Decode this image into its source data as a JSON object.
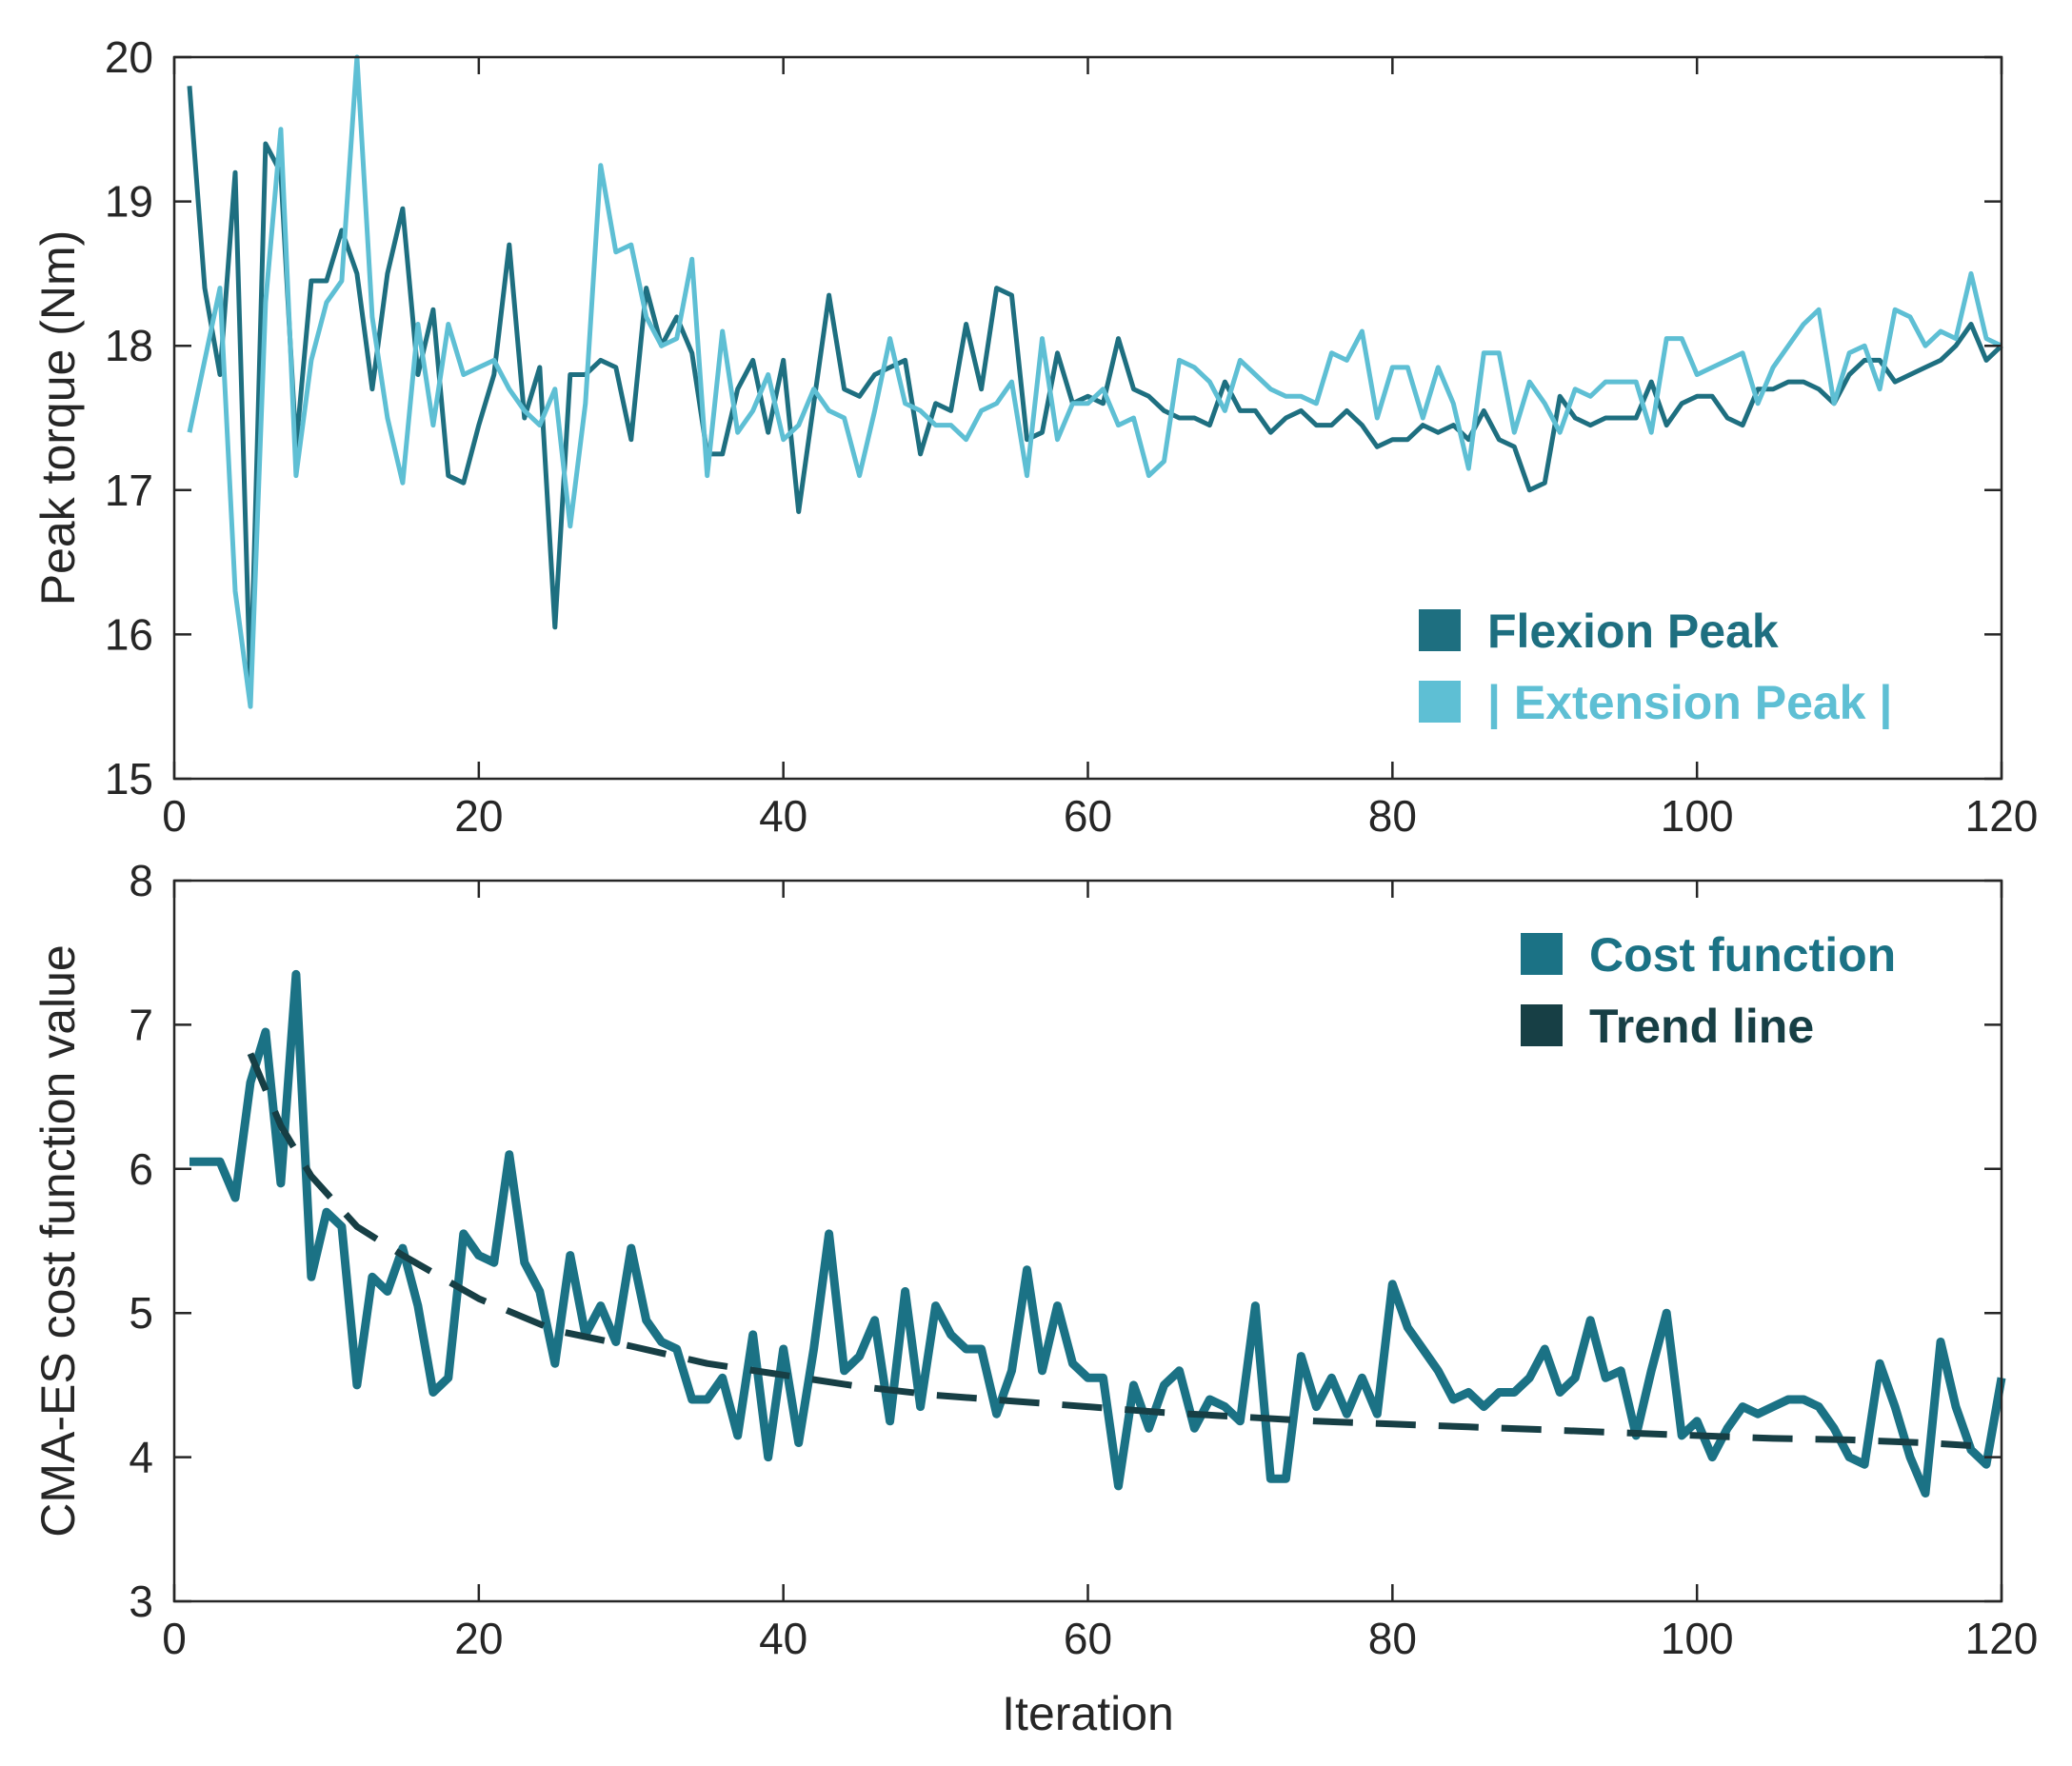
{
  "chart_data": [
    {
      "type": "line",
      "xlabel": "",
      "ylabel": "Peak torque (Nm)",
      "xlim": [
        0,
        120
      ],
      "ylim": [
        15,
        20
      ],
      "xticks": [
        0,
        20,
        40,
        60,
        80,
        100,
        120
      ],
      "yticks": [
        15,
        16,
        17,
        18,
        19,
        20
      ],
      "grid": false,
      "legend_position": "bottom-right",
      "series": [
        {
          "name": "Flexion Peak",
          "color": "#1e6f80",
          "line_style": "solid",
          "x": [
            1,
            2,
            3,
            4,
            5,
            6,
            7,
            8,
            9,
            10,
            11,
            12,
            13,
            14,
            15,
            16,
            17,
            18,
            19,
            20,
            21,
            22,
            23,
            24,
            25,
            26,
            27,
            28,
            29,
            30,
            31,
            32,
            33,
            34,
            35,
            36,
            37,
            38,
            39,
            40,
            41,
            42,
            43,
            44,
            45,
            46,
            47,
            48,
            49,
            50,
            51,
            52,
            53,
            54,
            55,
            56,
            57,
            58,
            59,
            60,
            61,
            62,
            63,
            64,
            65,
            66,
            67,
            68,
            69,
            70,
            71,
            72,
            73,
            74,
            75,
            76,
            77,
            78,
            79,
            80,
            81,
            82,
            83,
            84,
            85,
            86,
            87,
            88,
            89,
            90,
            91,
            92,
            93,
            94,
            95,
            96,
            97,
            98,
            99,
            100,
            101,
            102,
            103,
            104,
            105,
            106,
            107,
            108,
            109,
            110,
            111,
            112,
            113,
            114,
            115,
            116,
            117,
            118,
            119,
            120
          ],
          "y": [
            19.8,
            18.4,
            17.8,
            19.2,
            15.6,
            19.4,
            19.2,
            17.3,
            18.45,
            18.45,
            18.8,
            18.5,
            17.7,
            18.5,
            18.95,
            17.8,
            18.25,
            17.1,
            17.05,
            17.45,
            17.8,
            18.7,
            17.5,
            17.85,
            16.05,
            17.8,
            17.8,
            17.9,
            17.85,
            17.35,
            18.4,
            18.0,
            18.2,
            17.95,
            17.25,
            17.25,
            17.7,
            17.9,
            17.4,
            17.9,
            16.85,
            17.6,
            18.35,
            17.7,
            17.65,
            17.8,
            17.85,
            17.9,
            17.25,
            17.6,
            17.55,
            18.15,
            17.7,
            18.4,
            18.35,
            17.35,
            17.4,
            17.95,
            17.6,
            17.65,
            17.6,
            18.05,
            17.7,
            17.65,
            17.55,
            17.5,
            17.5,
            17.45,
            17.75,
            17.55,
            17.55,
            17.4,
            17.5,
            17.55,
            17.45,
            17.45,
            17.55,
            17.45,
            17.3,
            17.35,
            17.35,
            17.45,
            17.4,
            17.45,
            17.35,
            17.55,
            17.35,
            17.3,
            17.0,
            17.05,
            17.65,
            17.5,
            17.45,
            17.5,
            17.5,
            17.5,
            17.75,
            17.45,
            17.6,
            17.65,
            17.65,
            17.5,
            17.45,
            17.7,
            17.7,
            17.75,
            17.75,
            17.7,
            17.6,
            17.8,
            17.9,
            17.9,
            17.75,
            17.8,
            17.85,
            17.9,
            18.0,
            18.15,
            17.9,
            18.0
          ]
        },
        {
          "name": "| Extension Peak |",
          "color": "#5ebfd4",
          "line_style": "solid",
          "x": [
            1,
            2,
            3,
            4,
            5,
            6,
            7,
            8,
            9,
            10,
            11,
            12,
            13,
            14,
            15,
            16,
            17,
            18,
            19,
            20,
            21,
            22,
            23,
            24,
            25,
            26,
            27,
            28,
            29,
            30,
            31,
            32,
            33,
            34,
            35,
            36,
            37,
            38,
            39,
            40,
            41,
            42,
            43,
            44,
            45,
            46,
            47,
            48,
            49,
            50,
            51,
            52,
            53,
            54,
            55,
            56,
            57,
            58,
            59,
            60,
            61,
            62,
            63,
            64,
            65,
            66,
            67,
            68,
            69,
            70,
            71,
            72,
            73,
            74,
            75,
            76,
            77,
            78,
            79,
            80,
            81,
            82,
            83,
            84,
            85,
            86,
            87,
            88,
            89,
            90,
            91,
            92,
            93,
            94,
            95,
            96,
            97,
            98,
            99,
            100,
            101,
            102,
            103,
            104,
            105,
            106,
            107,
            108,
            109,
            110,
            111,
            112,
            113,
            114,
            115,
            116,
            117,
            118,
            119,
            120
          ],
          "y": [
            17.4,
            17.9,
            18.4,
            16.3,
            15.5,
            18.3,
            19.5,
            17.1,
            17.9,
            18.3,
            18.45,
            20.0,
            18.2,
            17.5,
            17.05,
            18.15,
            17.45,
            18.15,
            17.8,
            17.85,
            17.9,
            17.7,
            17.55,
            17.45,
            17.7,
            16.75,
            17.6,
            19.25,
            18.65,
            18.7,
            18.2,
            18.0,
            18.05,
            18.6,
            17.1,
            18.1,
            17.4,
            17.55,
            17.8,
            17.35,
            17.45,
            17.7,
            17.55,
            17.5,
            17.1,
            17.55,
            18.05,
            17.6,
            17.55,
            17.45,
            17.45,
            17.35,
            17.55,
            17.6,
            17.75,
            17.1,
            18.05,
            17.35,
            17.6,
            17.6,
            17.7,
            17.45,
            17.5,
            17.1,
            17.2,
            17.9,
            17.85,
            17.75,
            17.55,
            17.9,
            17.8,
            17.7,
            17.65,
            17.65,
            17.6,
            17.95,
            17.9,
            18.1,
            17.5,
            17.85,
            17.85,
            17.5,
            17.85,
            17.6,
            17.15,
            17.95,
            17.95,
            17.4,
            17.75,
            17.6,
            17.4,
            17.7,
            17.65,
            17.75,
            17.75,
            17.75,
            17.4,
            18.05,
            18.05,
            17.8,
            17.85,
            17.9,
            17.95,
            17.6,
            17.85,
            18.0,
            18.15,
            18.25,
            17.6,
            17.95,
            18.0,
            17.7,
            18.25,
            18.2,
            18.0,
            18.1,
            18.05,
            18.5,
            18.05,
            18.0
          ]
        }
      ]
    },
    {
      "type": "line",
      "xlabel": "Iteration",
      "ylabel": "CMA-ES cost function value",
      "xlim": [
        0,
        120
      ],
      "ylim": [
        3,
        8
      ],
      "xticks": [
        0,
        20,
        40,
        60,
        80,
        100,
        120
      ],
      "yticks": [
        3,
        4,
        5,
        6,
        7,
        8
      ],
      "grid": false,
      "legend_position": "top-right",
      "series": [
        {
          "name": "Cost function",
          "color": "#1b7285",
          "line_style": "solid",
          "x": [
            1,
            2,
            3,
            4,
            5,
            6,
            7,
            8,
            9,
            10,
            11,
            12,
            13,
            14,
            15,
            16,
            17,
            18,
            19,
            20,
            21,
            22,
            23,
            24,
            25,
            26,
            27,
            28,
            29,
            30,
            31,
            32,
            33,
            34,
            35,
            36,
            37,
            38,
            39,
            40,
            41,
            42,
            43,
            44,
            45,
            46,
            47,
            48,
            49,
            50,
            51,
            52,
            53,
            54,
            55,
            56,
            57,
            58,
            59,
            60,
            61,
            62,
            63,
            64,
            65,
            66,
            67,
            68,
            69,
            70,
            71,
            72,
            73,
            74,
            75,
            76,
            77,
            78,
            79,
            80,
            81,
            82,
            83,
            84,
            85,
            86,
            87,
            88,
            89,
            90,
            91,
            92,
            93,
            94,
            95,
            96,
            97,
            98,
            99,
            100,
            101,
            102,
            103,
            104,
            105,
            106,
            107,
            108,
            109,
            110,
            111,
            112,
            113,
            114,
            115,
            116,
            117,
            118,
            119,
            120
          ],
          "y": [
            6.05,
            6.05,
            6.05,
            5.8,
            6.6,
            6.95,
            5.9,
            7.35,
            5.25,
            5.7,
            5.6,
            4.5,
            5.25,
            5.15,
            5.45,
            5.05,
            4.45,
            4.55,
            5.55,
            5.4,
            5.35,
            6.1,
            5.35,
            5.15,
            4.65,
            5.4,
            4.85,
            5.05,
            4.8,
            5.45,
            4.95,
            4.8,
            4.75,
            4.4,
            4.4,
            4.55,
            4.15,
            4.85,
            4.0,
            4.75,
            4.1,
            4.75,
            5.55,
            4.6,
            4.7,
            4.95,
            4.25,
            5.15,
            4.35,
            5.05,
            4.85,
            4.75,
            4.75,
            4.3,
            4.6,
            5.3,
            4.6,
            5.05,
            4.65,
            4.55,
            4.55,
            3.8,
            4.5,
            4.2,
            4.5,
            4.6,
            4.2,
            4.4,
            4.35,
            4.25,
            5.05,
            3.85,
            3.85,
            4.7,
            4.35,
            4.55,
            4.3,
            4.55,
            4.3,
            5.2,
            4.9,
            4.75,
            4.6,
            4.4,
            4.45,
            4.35,
            4.45,
            4.45,
            4.55,
            4.75,
            4.45,
            4.55,
            4.95,
            4.55,
            4.6,
            4.15,
            4.6,
            5.0,
            4.15,
            4.25,
            4.0,
            4.2,
            4.35,
            4.3,
            4.35,
            4.4,
            4.4,
            4.35,
            4.2,
            4.0,
            3.95,
            4.65,
            4.35,
            4.0,
            3.75,
            4.8,
            4.35,
            4.05,
            3.95,
            4.55
          ]
        },
        {
          "name": "Trend line",
          "color": "#173f45",
          "line_style": "dashed",
          "x": [
            5,
            7,
            9,
            12,
            15,
            20,
            25,
            30,
            35,
            40,
            45,
            50,
            55,
            60,
            65,
            70,
            75,
            80,
            85,
            90,
            95,
            100,
            105,
            110,
            115,
            118
          ],
          "y": [
            6.8,
            6.3,
            5.95,
            5.6,
            5.4,
            5.1,
            4.88,
            4.77,
            4.65,
            4.57,
            4.49,
            4.43,
            4.39,
            4.35,
            4.31,
            4.28,
            4.25,
            4.23,
            4.21,
            4.19,
            4.17,
            4.15,
            4.13,
            4.12,
            4.1,
            4.08
          ]
        }
      ]
    }
  ]
}
